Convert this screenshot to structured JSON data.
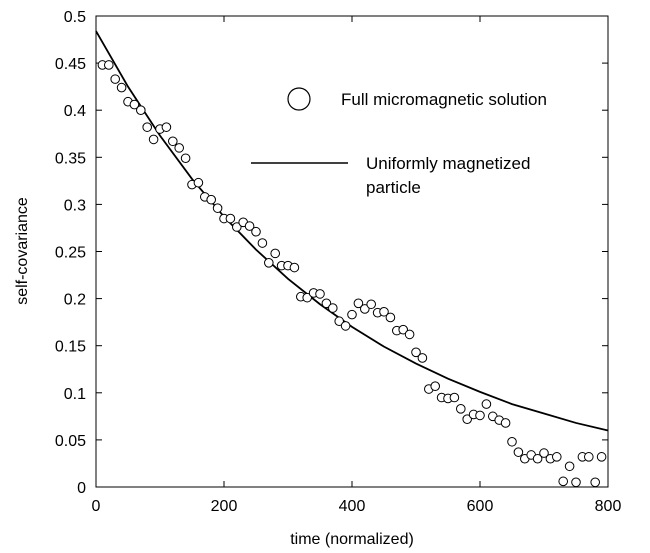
{
  "chart_data": {
    "type": "scatter",
    "title": "",
    "xlabel": "time (normalized)",
    "ylabel": "self-covariance",
    "xlim": [
      0,
      800
    ],
    "ylim": [
      0,
      0.5
    ],
    "xticks": [
      0,
      200,
      400,
      600,
      800
    ],
    "xtick_labels": [
      "0",
      "200",
      "400",
      "600",
      "800"
    ],
    "yticks": [
      0,
      0.05,
      0.1,
      0.15,
      0.2,
      0.25,
      0.3,
      0.35,
      0.4,
      0.45,
      0.5
    ],
    "ytick_labels": [
      "0",
      "0.05",
      "0.1",
      "0.15",
      "0.2",
      "0.25",
      "0.3",
      "0.35",
      "0.4",
      "0.45",
      "0.5"
    ],
    "grid": false,
    "legend_position": "top-right",
    "series": [
      {
        "name": "Full micromagnetic solution",
        "marker": "open-circle",
        "color": "#000000",
        "x": [
          10,
          20,
          30,
          40,
          50,
          60,
          70,
          80,
          90,
          100,
          110,
          120,
          130,
          140,
          150,
          160,
          170,
          180,
          190,
          200,
          210,
          220,
          230,
          240,
          250,
          260,
          270,
          280,
          290,
          300,
          310,
          320,
          330,
          340,
          350,
          360,
          370,
          380,
          390,
          400,
          410,
          420,
          430,
          440,
          450,
          460,
          470,
          480,
          490,
          500,
          510,
          520,
          530,
          540,
          550,
          560,
          570,
          580,
          590,
          600,
          610,
          620,
          630,
          640,
          650,
          660,
          670,
          680,
          690,
          700,
          710,
          720,
          730,
          740,
          750,
          760,
          770,
          780,
          790
        ],
        "y": [
          0.448,
          0.448,
          0.433,
          0.424,
          0.409,
          0.406,
          0.4,
          0.382,
          0.369,
          0.38,
          0.382,
          0.367,
          0.36,
          0.349,
          0.321,
          0.323,
          0.308,
          0.305,
          0.296,
          0.285,
          0.285,
          0.276,
          0.281,
          0.277,
          0.271,
          0.259,
          0.238,
          0.248,
          0.235,
          0.235,
          0.233,
          0.202,
          0.201,
          0.206,
          0.205,
          0.195,
          0.19,
          0.176,
          0.171,
          0.183,
          0.195,
          0.189,
          0.194,
          0.185,
          0.186,
          0.18,
          0.166,
          0.167,
          0.162,
          0.143,
          0.137,
          0.104,
          0.107,
          0.095,
          0.094,
          0.095,
          0.083,
          0.072,
          0.077,
          0.076,
          0.088,
          0.075,
          0.071,
          0.068,
          0.048,
          0.037,
          0.03,
          0.034,
          0.03,
          0.036,
          0.03,
          0.032,
          0.006,
          0.022,
          0.005,
          0.032,
          0.032,
          0.005,
          0.032
        ]
      },
      {
        "name": "Uniformly magnetized particle",
        "marker": "line",
        "color": "#000000",
        "x": [
          0,
          50,
          100,
          150,
          200,
          250,
          300,
          350,
          400,
          450,
          500,
          550,
          600,
          650,
          700,
          750,
          800
        ],
        "y": [
          0.484,
          0.425,
          0.373,
          0.327,
          0.287,
          0.252,
          0.221,
          0.194,
          0.17,
          0.149,
          0.131,
          0.115,
          0.101,
          0.088,
          0.078,
          0.068,
          0.06
        ]
      }
    ],
    "legend": {
      "entry1": "Full micromagnetic solution",
      "entry2_line1": "Uniformly magnetized",
      "entry2_line2": "particle"
    }
  }
}
